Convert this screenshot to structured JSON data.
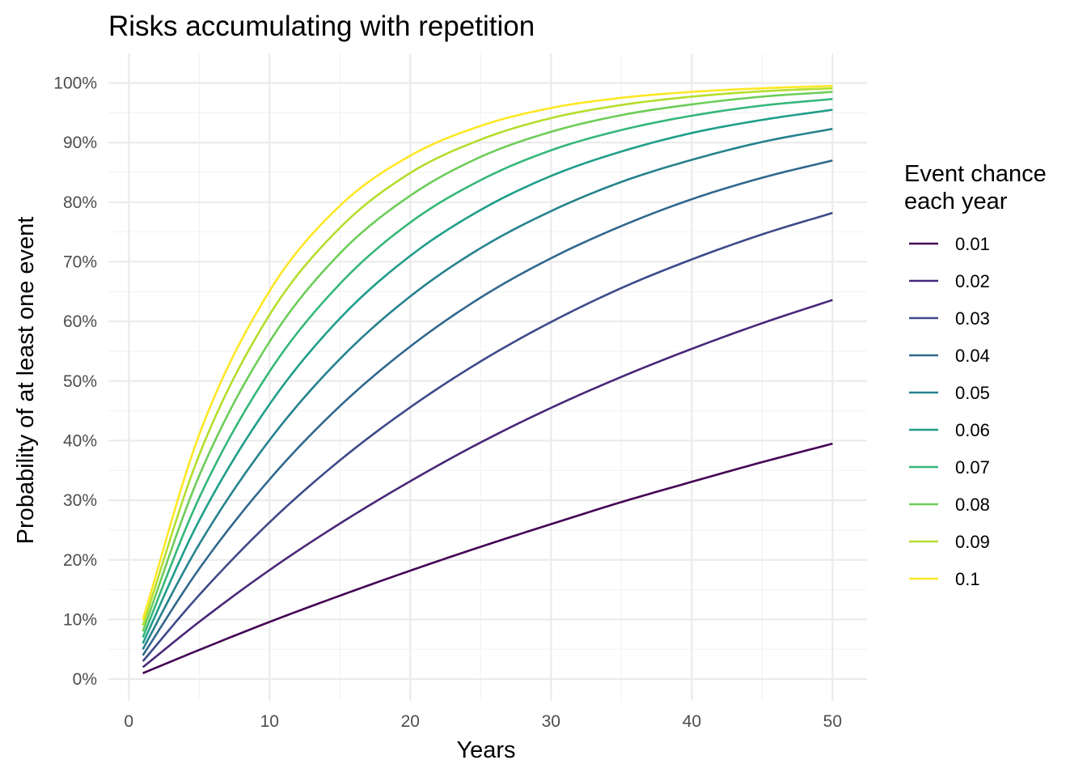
{
  "chart_data": {
    "type": "line",
    "title": "Risks accumulating with repetition",
    "xlabel": "Years",
    "ylabel": "Probability of at least one event",
    "xlim": [
      1,
      50
    ],
    "ylim": [
      0,
      1
    ],
    "x_ticks": [
      0,
      10,
      20,
      30,
      40,
      50
    ],
    "x_tick_labels": [
      "0",
      "10",
      "20",
      "30",
      "40",
      "50"
    ],
    "y_ticks": [
      0,
      0.1,
      0.2,
      0.3,
      0.4,
      0.5,
      0.6,
      0.7,
      0.8,
      0.9,
      1.0
    ],
    "y_tick_labels": [
      "0%",
      "10%",
      "20%",
      "30%",
      "40%",
      "50%",
      "60%",
      "70%",
      "80%",
      "90%",
      "100%"
    ],
    "grid": true,
    "legend": {
      "title_lines": [
        "Event chance",
        "each year"
      ],
      "placement": "right"
    },
    "x": [
      1,
      5,
      10,
      15,
      20,
      25,
      30,
      35,
      40,
      45,
      50
    ],
    "series": [
      {
        "name": "0.01",
        "color": "#440154",
        "values": [
          0.01,
          0.049,
          0.096,
          0.14,
          0.182,
          0.222,
          0.26,
          0.297,
          0.331,
          0.364,
          0.395
        ]
      },
      {
        "name": "0.02",
        "color": "#482878",
        "values": [
          0.02,
          0.096,
          0.183,
          0.261,
          0.332,
          0.397,
          0.455,
          0.507,
          0.554,
          0.597,
          0.636
        ]
      },
      {
        "name": "0.03",
        "color": "#3E4A89",
        "values": [
          0.03,
          0.141,
          0.263,
          0.367,
          0.456,
          0.533,
          0.599,
          0.656,
          0.704,
          0.746,
          0.782
        ]
      },
      {
        "name": "0.04",
        "color": "#31688E",
        "values": [
          0.04,
          0.185,
          0.335,
          0.458,
          0.558,
          0.64,
          0.706,
          0.76,
          0.805,
          0.841,
          0.87
        ]
      },
      {
        "name": "0.05",
        "color": "#26828E",
        "values": [
          0.05,
          0.226,
          0.401,
          0.537,
          0.642,
          0.723,
          0.785,
          0.834,
          0.871,
          0.901,
          0.923
        ]
      },
      {
        "name": "0.06",
        "color": "#1F9E89",
        "values": [
          0.06,
          0.266,
          0.461,
          0.605,
          0.71,
          0.787,
          0.844,
          0.885,
          0.916,
          0.938,
          0.955
        ]
      },
      {
        "name": "0.07",
        "color": "#35B779",
        "values": [
          0.07,
          0.304,
          0.516,
          0.663,
          0.766,
          0.837,
          0.887,
          0.921,
          0.945,
          0.962,
          0.973
        ]
      },
      {
        "name": "0.08",
        "color": "#6DCD59",
        "values": [
          0.08,
          0.341,
          0.566,
          0.714,
          0.811,
          0.876,
          0.918,
          0.946,
          0.964,
          0.977,
          0.985
        ]
      },
      {
        "name": "0.09",
        "color": "#B4DE2C",
        "values": [
          0.09,
          0.376,
          0.611,
          0.757,
          0.849,
          0.905,
          0.941,
          0.963,
          0.977,
          0.986,
          0.991
        ]
      },
      {
        "name": "0.1",
        "color": "#FDE725",
        "values": [
          0.1,
          0.41,
          0.651,
          0.794,
          0.878,
          0.928,
          0.958,
          0.975,
          0.985,
          0.991,
          0.995
        ]
      }
    ]
  }
}
